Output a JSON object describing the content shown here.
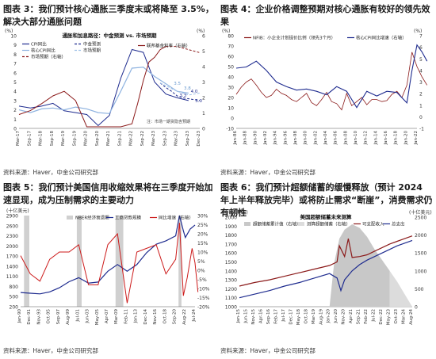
{
  "charts": [
    {
      "fig_title": "图表 3：我们预计核心通胀三季度末或将降至 3.5%，解决大部分通胀问题",
      "source": "资料来源：Haver，中金公司研究部",
      "colors": {
        "cpi": "#1f2c8f",
        "core_cpi": "#8fb3e0",
        "forecast": "#1f2c8f",
        "market": "#9ec1e8",
        "ffr": "#8b1a1a"
      },
      "chart_data": {
        "type": "line",
        "title": "通胀和加息路径：中金预测 vs. 市场预期",
        "left_unit": "(%)",
        "right_unit": "(%)",
        "ylim_left": [
          0,
          10
        ],
        "ylim_right": [
          0,
          6
        ],
        "yticks_left": [
          0,
          1,
          2,
          3,
          4,
          5,
          6,
          7,
          8,
          9,
          10
        ],
        "yticks_right": [
          0,
          1,
          2,
          3,
          4,
          5,
          6
        ],
        "xticks": [
          "Mar-17",
          "Sep-17",
          "Mar-18",
          "Sep-18",
          "Mar-19",
          "Sep-19",
          "Mar-20",
          "Sep-20",
          "Mar-21",
          "Sep-21",
          "Mar-22",
          "Sep-22",
          "Mar-23",
          "Sep-23",
          "Mar-23",
          "Sep-23",
          "Dec-23"
        ],
        "legend": [
          "CPI同比",
          "中金预测",
          "核心CPI同比",
          "市场预期",
          "联邦基金利率（右轴）",
          "市场预期（右轴）"
        ],
        "annotations": [
          "4.0",
          "3.0",
          "3.8",
          "3.5",
          "3.3"
        ],
        "note": "注：市场一期货隐含预期",
        "series": [
          {
            "name": "CPI同比",
            "axis": "left",
            "x_index": [
              0,
              1,
              2,
              3,
              4,
              5,
              6,
              7,
              8,
              9,
              10,
              11,
              12,
              13,
              14,
              15
            ],
            "values": [
              2.4,
              2.2,
              2.4,
              2.7,
              1.9,
              1.7,
              1.5,
              0.3,
              1.4,
              5.4,
              8.5,
              8.2,
              5.0,
              3.7,
              3.3,
              3.0
            ]
          },
          {
            "name": "核心CPI同比",
            "axis": "left",
            "x_index": [
              0,
              1,
              2,
              3,
              4,
              5,
              6,
              7,
              8,
              9,
              10,
              11,
              12,
              13,
              14,
              15
            ],
            "values": [
              2.0,
              1.7,
              2.1,
              2.2,
              2.0,
              2.3,
              2.1,
              1.7,
              1.6,
              4.0,
              6.5,
              6.6,
              5.6,
              4.8,
              4.0,
              3.8
            ]
          },
          {
            "name": "中金预测",
            "axis": "left",
            "x_index": [
              12.5,
              13,
              13.5,
              14,
              14.5,
              15,
              16
            ],
            "values": [
              4.9,
              4.4,
              4.0,
              3.5,
              3.3,
              3.2,
              3.0
            ]
          },
          {
            "name": "市场预期",
            "axis": "left",
            "x_index": [
              12.5,
              13,
              13.5,
              14,
              14.5,
              15,
              16
            ],
            "values": [
              4.9,
              4.6,
              4.3,
              4.0,
              3.8,
              3.6,
              3.8
            ]
          },
          {
            "name": "联邦基金利率（右轴）",
            "axis": "right",
            "x_index": [
              0,
              1,
              2,
              3,
              4,
              5,
              6,
              6.3,
              7,
              9,
              10,
              10.5,
              11,
              11.5,
              12,
              12.5,
              13
            ],
            "values": [
              0.9,
              1.15,
              1.6,
              2.1,
              2.4,
              1.8,
              0.1,
              0.1,
              0.1,
              0.1,
              0.3,
              1.6,
              3.1,
              4.3,
              4.6,
              5.1,
              5.3
            ]
          },
          {
            "name": "市场预期（右轴）",
            "axis": "right",
            "x_index": [
              13,
              14,
              15,
              16
            ],
            "values": [
              5.3,
              5.3,
              5.1,
              4.9
            ]
          }
        ]
      }
    },
    {
      "fig_title": "图表 4：企业价格调整预期对核心通胀有较好的领先效果",
      "source": "资料来源：Haver，中金公司研究部",
      "colors": {
        "nfib": "#8b1a1a",
        "core": "#1f2c8f"
      },
      "chart_data": {
        "type": "line",
        "left_unit": "(%)",
        "right_unit": "(%)",
        "ylim_left": [
          -10,
          80
        ],
        "ylim_right": [
          -1,
          7
        ],
        "yticks_left": [
          -10,
          0,
          10,
          20,
          30,
          40,
          50,
          60,
          70,
          80
        ],
        "yticks_right": [
          -1,
          0,
          1,
          2,
          3,
          4,
          5,
          6,
          7
        ],
        "xticks": [
          "Jan-86",
          "Jan-88",
          "Jan-90",
          "Jan-92",
          "Jan-94",
          "Jan-96",
          "Jan-98",
          "Jan-00",
          "Jan-02",
          "Jan-04",
          "Jan-06",
          "Jan-08",
          "Jan-10",
          "Jan-12",
          "Jan-14",
          "Jan-16",
          "Jan-18",
          "Jan-20",
          "Jan-22"
        ],
        "legend": [
          "NFIB：小企业计划提价比例（领先3个月）",
          "核心CPI同比增速（右轴）"
        ],
        "series": [
          {
            "name": "NFIB：小企业计划提价比例（领先3个月）",
            "axis": "left",
            "x_index": [
              0,
              0.5,
              1,
              1.5,
              2,
              2.5,
              3,
              3.5,
              4,
              4.5,
              5,
              5.5,
              6,
              6.5,
              7,
              7.5,
              8,
              8.5,
              9,
              9.5,
              10,
              10.5,
              11,
              11.5,
              12,
              12.5,
              13,
              13.5,
              14,
              14.5,
              15,
              15.5,
              16,
              16.5,
              17,
              17.5,
              18,
              18.5,
              19
            ],
            "values": [
              23,
              30,
              35,
              38,
              32,
              25,
              20,
              22,
              28,
              24,
              22,
              18,
              16,
              20,
              24,
              15,
              12,
              18,
              25,
              16,
              14,
              8,
              24,
              12,
              16,
              20,
              13,
              18,
              18,
              16,
              17,
              23,
              26,
              20,
              32,
              64,
              50,
              40,
              32
            ]
          },
          {
            "name": "核心CPI同比增速（右轴）",
            "axis": "right",
            "x_index": [
              0,
              1,
              2,
              3,
              4,
              5,
              6,
              7,
              8,
              9,
              10,
              11,
              12,
              13,
              14,
              15,
              16,
              17,
              17.5,
              18,
              18.5,
              19
            ],
            "values": [
              4.2,
              4.3,
              4.8,
              4.0,
              3.0,
              2.6,
              2.3,
              2.4,
              2.2,
              1.9,
              2.6,
              2.2,
              0.8,
              2.2,
              1.8,
              2.2,
              2.1,
              1.2,
              4.0,
              6.2,
              5.6,
              4.8
            ]
          }
        ]
      }
    },
    {
      "fig_title": "图表 5：我们预计美国信用收缩效果将在三季度开始加速显现，成为压制需求的主要动力",
      "source": "资料来源：Haver，中金公司研究部",
      "colors": {
        "rec": "#d0d0d0",
        "loans": "#1f2c8f",
        "yoy": "#cc1a1a"
      },
      "chart_data": {
        "type": "line",
        "left_unit": "(十亿美元)",
        "ylim_left": [
          200,
          2900
        ],
        "ylim_right": [
          -20,
          30
        ],
        "yticks_left": [
          200,
          500,
          800,
          1100,
          1400,
          1700,
          2000,
          2300,
          2600,
          2900
        ],
        "yticks_right": [
          "-20%",
          "-15%",
          "-10%",
          "-5%",
          "0%",
          "5%",
          "10%",
          "15%",
          "20%",
          "25%",
          "30%"
        ],
        "xticks": [
          "Jan-90",
          "Dec-91",
          "Nov-93",
          "Oct-95",
          "Sep-97",
          "Aug-99",
          "Jul-01",
          "Jun-03",
          "May-05",
          "Apr-07",
          "Mar-09",
          "Feb-11",
          "Jan-13",
          "Dec-14",
          "Nov-16",
          "Oct-18",
          "Sep-20",
          "Aug-22",
          "Jul-24"
        ],
        "legend": [
          "NBER经济衰退期",
          "工商贷款规模",
          "同比增速（右轴）"
        ],
        "recessions": [
          [
            0.35,
            0.9
          ],
          [
            5.8,
            6.3
          ],
          [
            9.8,
            10.6
          ],
          [
            16.3,
            16.6
          ]
        ],
        "series": [
          {
            "name": "工商贷款规模",
            "axis": "left",
            "x_index": [
              0,
              1,
              2,
              3,
              4,
              5,
              6,
              7,
              8,
              9,
              10,
              11,
              12,
              13,
              14,
              15,
              16,
              16.4,
              16.8,
              17,
              17.5,
              18
            ],
            "values": [
              620,
              600,
              580,
              640,
              760,
              940,
              1060,
              900,
              930,
              1250,
              1450,
              1250,
              1450,
              1800,
              2050,
              2150,
              2300,
              2900,
              2450,
              2250,
              2500,
              2620
            ]
          },
          {
            "name": "同比增速（右轴）",
            "axis": "right",
            "x_index": [
              0,
              1,
              2,
              3,
              4,
              5,
              6,
              7,
              8,
              9,
              10,
              11,
              12,
              13,
              14,
              15,
              16,
              16.4,
              16.8,
              17.2,
              17.7,
              18,
              18.3
            ],
            "values": [
              8,
              -2,
              -6,
              6,
              10,
              10,
              14,
              -8,
              -8,
              14,
              20,
              -18,
              10,
              12,
              14,
              -2,
              6,
              26,
              -14,
              -4,
              12,
              4,
              -12
            ]
          }
        ]
      }
    },
    {
      "fig_title": "图表 6：我们预计超额储蓄的缓慢释放（预计 2024 年上半年释放完毕）或将防止需求“断崖”，消费需求仍有韧性",
      "source": "资料来源：Haver，中金公司研究部",
      "colors": {
        "cum": "#c8c8c8",
        "est": "#dcdcdc",
        "disp": "#8b1a1a",
        "spend": "#1f2c8f"
      },
      "chart_data": {
        "type": "area",
        "title": "美国超额储蓄未来测算",
        "left_unit": "(十亿美元)",
        "right_unit": "(十亿美元)",
        "ylim_left": [
          1000,
          2000
        ],
        "ylim_right": [
          0,
          2500
        ],
        "yticks_left": [
          1000,
          1100,
          1200,
          1300,
          1400,
          1500,
          1600,
          1700,
          1800,
          1900,
          2000
        ],
        "yticks_right": [
          0,
          500,
          1000,
          1500,
          2000,
          2500
        ],
        "xticks": [
          "Jan-15",
          "Jun-15",
          "Nov-15",
          "Apr-16",
          "Sep-16",
          "Feb-17",
          "Jul-17",
          "Dec-17",
          "May-18",
          "Oct-18",
          "Mar-19",
          "Aug-19",
          "Jan-20",
          "Jun-20",
          "Nov-20",
          "Apr-21",
          "Sep-21",
          "Feb-22",
          "Jul-22",
          "Dec-22",
          "May-23",
          "Oct-23",
          "Mar-24",
          "Aug-24"
        ],
        "legend": [
          "超额储蓄累计值（右轴）",
          "测算超额储蓄（右轴）",
          "可支配收入",
          "总支出"
        ],
        "series": [
          {
            "name": "超额储蓄累计值（右轴）",
            "axis": "right",
            "x_index": [
              12,
              12.6,
              13.3,
              14,
              15,
              16,
              17,
              18,
              19,
              20
            ],
            "values": [
              0,
              1200,
              1900,
              2150,
              2300,
              2200,
              1950,
              1600,
              1300,
              1000
            ]
          },
          {
            "name": "测算超额储蓄（右轴）",
            "axis": "right",
            "x_index": [
              20,
              21,
              22,
              23
            ],
            "values": [
              1000,
              700,
              350,
              0
            ]
          },
          {
            "name": "可支配收入",
            "axis": "left",
            "x_index": [
              0,
              2,
              4,
              6,
              8,
              10,
              12,
              13,
              13.3,
              14,
              14.5,
              15,
              16,
              17,
              18,
              19,
              20,
              21,
              22,
              23
            ],
            "values": [
              1230,
              1270,
              1300,
              1340,
              1380,
              1420,
              1460,
              1500,
              1680,
              1560,
              1760,
              1550,
              1560,
              1580,
              1620,
              1660,
              1700,
              1730,
              1760,
              1790
            ]
          },
          {
            "name": "总支出",
            "axis": "left",
            "x_index": [
              0,
              2,
              4,
              6,
              8,
              10,
              12,
              13,
              13.5,
              14,
              15,
              16,
              17,
              18,
              19,
              20,
              21,
              22,
              23
            ],
            "values": [
              1100,
              1140,
              1180,
              1230,
              1270,
              1320,
              1370,
              1320,
              1180,
              1300,
              1400,
              1470,
              1520,
              1560,
              1600,
              1640,
              1680,
              1710,
              1740
            ]
          }
        ]
      }
    }
  ]
}
